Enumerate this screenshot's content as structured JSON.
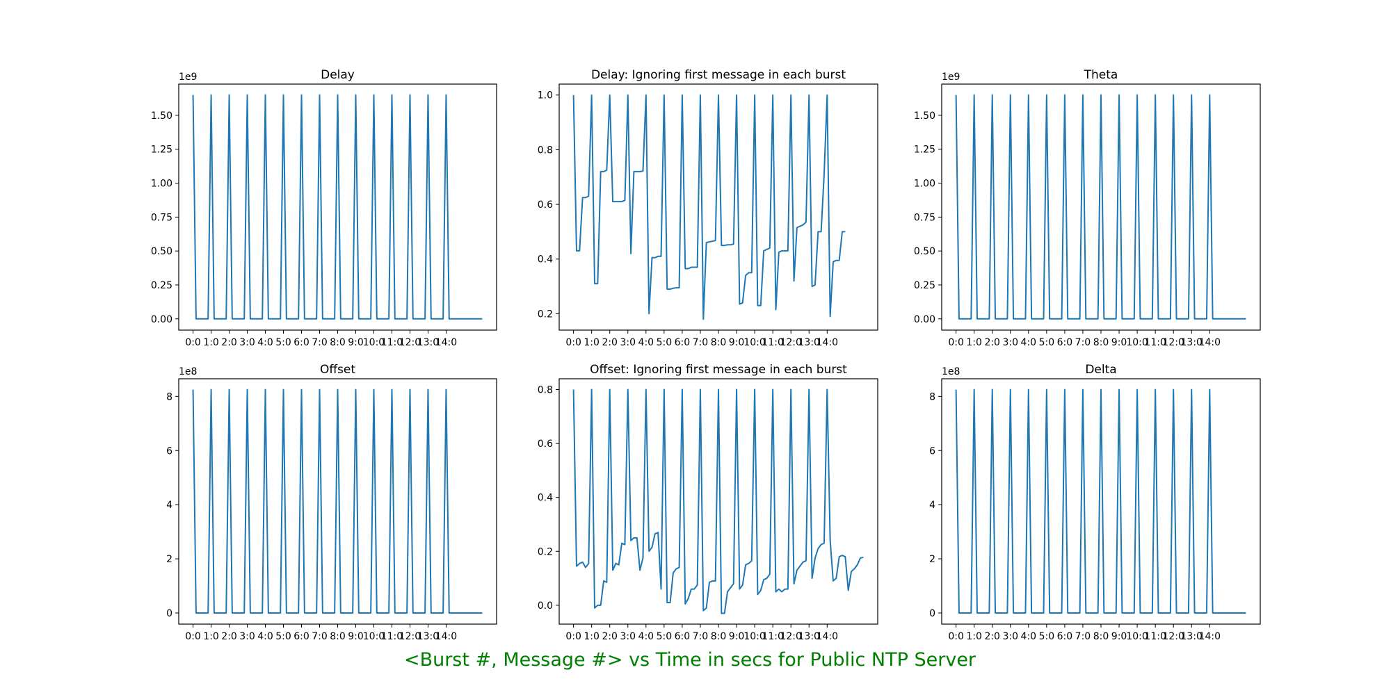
{
  "figure": {
    "suptitle": "<Burst #, Message #> vs Time in secs for Public NTP Server",
    "suptitle_color": "#008000",
    "line_color": "#1f77b4"
  },
  "chart_data": [
    {
      "type": "line",
      "title": "Delay",
      "xlabel": "",
      "ylabel": "",
      "offset_text": "1e9",
      "xtick_labels": [
        "0:0",
        "1:0",
        "2:0",
        "3:0",
        "4:0",
        "5:0",
        "6:0",
        "7:0",
        "8:0",
        "9:0",
        "10:0",
        "11:0",
        "12:0",
        "13:0",
        "14:0"
      ],
      "yticks": [
        0.0,
        0.25,
        0.5,
        0.75,
        1.0,
        1.25,
        1.5
      ],
      "ytick_labels": [
        "0.00",
        "0.25",
        "0.50",
        "0.75",
        "1.00",
        "1.25",
        "1.50"
      ],
      "ylim": [
        -0.083,
        1.73
      ],
      "grid": false,
      "pattern": "spikes",
      "spike_value": 1.65,
      "base_value": 0.0
    },
    {
      "type": "line",
      "title": "Delay: Ignoring first message in each burst",
      "xlabel": "",
      "ylabel": "",
      "xtick_labels": [
        "0:0",
        "1:0",
        "2:0",
        "3:0",
        "4:0",
        "5:0",
        "6:0",
        "7:0",
        "8:0",
        "9:0",
        "10:0",
        "11:0",
        "12:0",
        "13:0",
        "14:0"
      ],
      "yticks": [
        0.2,
        0.4,
        0.6,
        0.8,
        1.0
      ],
      "ytick_labels": [
        "0.2",
        "0.4",
        "0.6",
        "0.8",
        "1.0"
      ],
      "ylim": [
        0.14,
        1.04
      ],
      "grid": false,
      "pattern": "bursts",
      "values": [
        [
          1.0,
          0.43,
          0.43,
          0.625,
          0.625,
          0.63
        ],
        [
          1.0,
          0.31,
          0.31,
          0.72,
          0.72,
          0.725
        ],
        [
          1.0,
          0.61,
          0.61,
          0.61,
          0.61,
          0.615
        ],
        [
          1.0,
          0.42,
          0.72,
          0.72,
          0.72,
          0.722
        ],
        [
          1.0,
          0.2,
          0.405,
          0.405,
          0.41,
          0.41
        ],
        [
          1.0,
          0.29,
          0.29,
          0.293,
          0.295,
          0.295
        ],
        [
          1.0,
          0.365,
          0.365,
          0.37,
          0.37,
          0.37
        ],
        [
          1.0,
          0.18,
          0.46,
          0.463,
          0.465,
          0.468
        ],
        [
          1.0,
          0.45,
          0.45,
          0.452,
          0.452,
          0.455
        ],
        [
          1.0,
          0.235,
          0.24,
          0.34,
          0.35,
          0.35
        ],
        [
          1.0,
          0.23,
          0.23,
          0.43,
          0.435,
          0.44
        ],
        [
          1.0,
          0.215,
          0.425,
          0.43,
          0.43,
          0.43
        ],
        [
          1.0,
          0.32,
          0.515,
          0.52,
          0.525,
          0.535
        ],
        [
          1.0,
          0.3,
          0.305,
          0.5,
          0.5,
          0.71
        ],
        [
          1.0,
          0.19,
          0.39,
          0.395,
          0.395,
          0.5
        ]
      ],
      "tail": [
        0.5
      ]
    },
    {
      "type": "line",
      "title": "Theta",
      "xlabel": "",
      "ylabel": "",
      "offset_text": "1e9",
      "xtick_labels": [
        "0:0",
        "1:0",
        "2:0",
        "3:0",
        "4:0",
        "5:0",
        "6:0",
        "7:0",
        "8:0",
        "9:0",
        "10:0",
        "11:0",
        "12:0",
        "13:0",
        "14:0"
      ],
      "yticks": [
        0.0,
        0.25,
        0.5,
        0.75,
        1.0,
        1.25,
        1.5
      ],
      "ytick_labels": [
        "0.00",
        "0.25",
        "0.50",
        "0.75",
        "1.00",
        "1.25",
        "1.50"
      ],
      "ylim": [
        -0.083,
        1.73
      ],
      "grid": false,
      "pattern": "spikes",
      "spike_value": 1.65,
      "base_value": 0.0
    },
    {
      "type": "line",
      "title": "Offset",
      "xlabel": "",
      "ylabel": "",
      "offset_text": "1e8",
      "xtick_labels": [
        "0:0",
        "1:0",
        "2:0",
        "3:0",
        "4:0",
        "5:0",
        "6:0",
        "7:0",
        "8:0",
        "9:0",
        "10:0",
        "11:0",
        "12:0",
        "13:0",
        "14:0"
      ],
      "yticks": [
        0,
        2,
        4,
        6,
        8
      ],
      "ytick_labels": [
        "0",
        "2",
        "4",
        "6",
        "8"
      ],
      "ylim": [
        -0.41,
        8.65
      ],
      "grid": false,
      "pattern": "spikes",
      "spike_value": 8.25,
      "base_value": 0.0
    },
    {
      "type": "line",
      "title": "Offset: Ignoring first message in each burst",
      "xlabel": "",
      "ylabel": "",
      "xtick_labels": [
        "0:0",
        "1:0",
        "2:0",
        "3:0",
        "4:0",
        "5:0",
        "6:0",
        "7:0",
        "8:0",
        "9:0",
        "10:0",
        "11:0",
        "12:0",
        "13:0",
        "14:0"
      ],
      "yticks": [
        0.0,
        0.2,
        0.4,
        0.6,
        0.8
      ],
      "ytick_labels": [
        "0.0",
        "0.2",
        "0.4",
        "0.6",
        "0.8"
      ],
      "ylim": [
        -0.07,
        0.84
      ],
      "grid": false,
      "pattern": "bursts",
      "values": [
        [
          0.8,
          0.145,
          0.155,
          0.16,
          0.14,
          0.155
        ],
        [
          0.8,
          -0.01,
          0.0,
          0.0,
          0.09,
          0.085
        ],
        [
          0.8,
          0.13,
          0.155,
          0.15,
          0.23,
          0.225
        ],
        [
          0.8,
          0.24,
          0.25,
          0.25,
          0.13,
          0.175
        ],
        [
          0.8,
          0.2,
          0.215,
          0.265,
          0.27,
          0.06
        ],
        [
          0.8,
          0.01,
          0.01,
          0.12,
          0.135,
          0.14
        ],
        [
          0.8,
          0.005,
          0.025,
          0.06,
          0.06,
          0.075
        ],
        [
          0.8,
          -0.02,
          -0.01,
          0.085,
          0.09,
          0.09
        ],
        [
          0.8,
          -0.03,
          -0.03,
          0.05,
          0.065,
          0.08
        ],
        [
          0.8,
          0.06,
          0.075,
          0.15,
          0.155,
          0.165
        ],
        [
          0.8,
          0.04,
          0.055,
          0.095,
          0.1,
          0.115
        ],
        [
          0.8,
          0.05,
          0.06,
          0.05,
          0.06,
          0.06
        ],
        [
          0.8,
          0.08,
          0.13,
          0.145,
          0.16,
          0.165
        ],
        [
          0.8,
          0.1,
          0.175,
          0.21,
          0.225,
          0.23
        ],
        [
          0.8,
          0.24,
          0.09,
          0.1,
          0.18,
          0.185
        ]
      ],
      "tail": [
        0.18,
        0.055,
        0.125,
        0.135,
        0.15,
        0.175,
        0.178
      ]
    },
    {
      "type": "line",
      "title": "Delta",
      "xlabel": "",
      "ylabel": "",
      "offset_text": "1e8",
      "xtick_labels": [
        "0:0",
        "1:0",
        "2:0",
        "3:0",
        "4:0",
        "5:0",
        "6:0",
        "7:0",
        "8:0",
        "9:0",
        "10:0",
        "11:0",
        "12:0",
        "13:0",
        "14:0"
      ],
      "yticks": [
        0,
        2,
        4,
        6,
        8
      ],
      "ytick_labels": [
        "0",
        "2",
        "4",
        "6",
        "8"
      ],
      "ylim": [
        -0.41,
        8.65
      ],
      "grid": false,
      "pattern": "spikes",
      "spike_value": 8.25,
      "base_value": 0.0
    }
  ]
}
